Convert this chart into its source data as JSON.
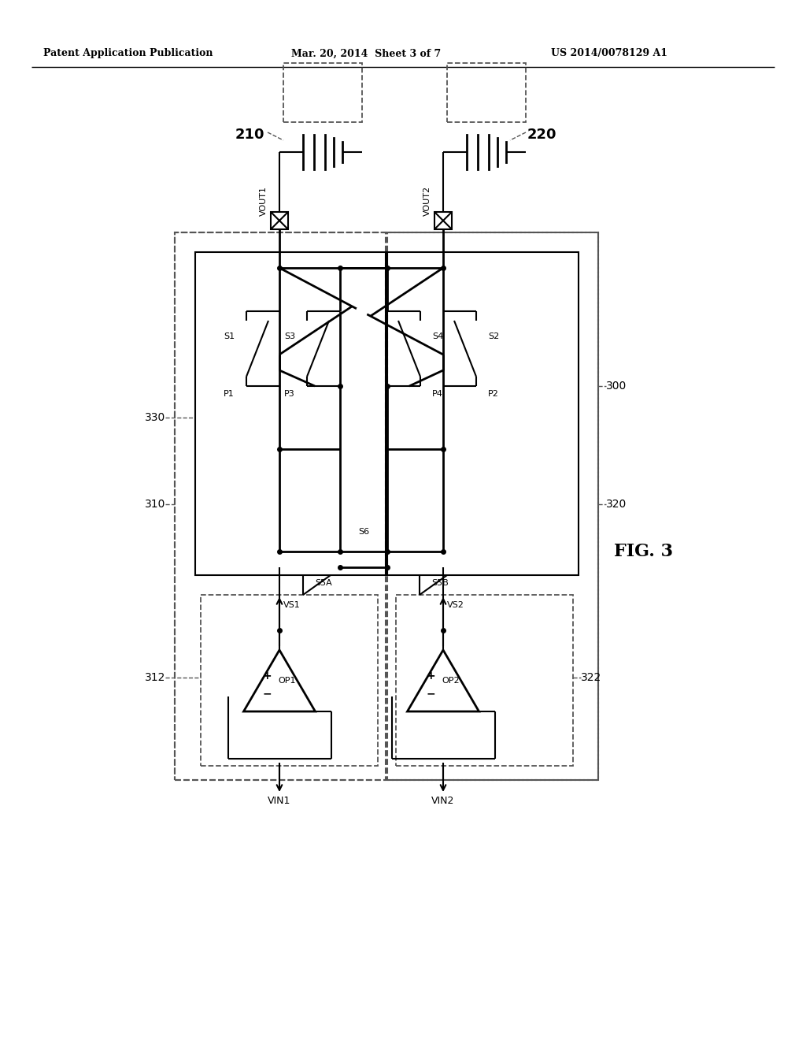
{
  "bg_color": "#ffffff",
  "lc": "#000000",
  "dc": "#555555",
  "header_left": "Patent Application Publication",
  "header_mid": "Mar. 20, 2014  Sheet 3 of 7",
  "header_right": "US 2014/0078129 A1",
  "fig_label": "FIG. 3",
  "label_210": "210",
  "label_220": "220",
  "label_300": "300",
  "label_310": "310",
  "label_312": "312",
  "label_320": "320",
  "label_322": "322",
  "label_330": "330",
  "label_vout1": "VOUT1",
  "label_vout2": "VOUT2",
  "label_vin1": "VIN1",
  "label_vin2": "VIN2",
  "label_op1": "OP1",
  "label_op2": "OP2",
  "label_s1": "S1",
  "label_s2": "S2",
  "label_s3": "S3",
  "label_s4": "S4",
  "label_s5a": "S5A",
  "label_s5b": "S5B",
  "label_s6": "S6",
  "label_p1": "P1",
  "label_p2": "P2",
  "label_p3": "P3",
  "label_p4": "P4",
  "label_vs1": "VS1",
  "label_vs2": "VS2"
}
